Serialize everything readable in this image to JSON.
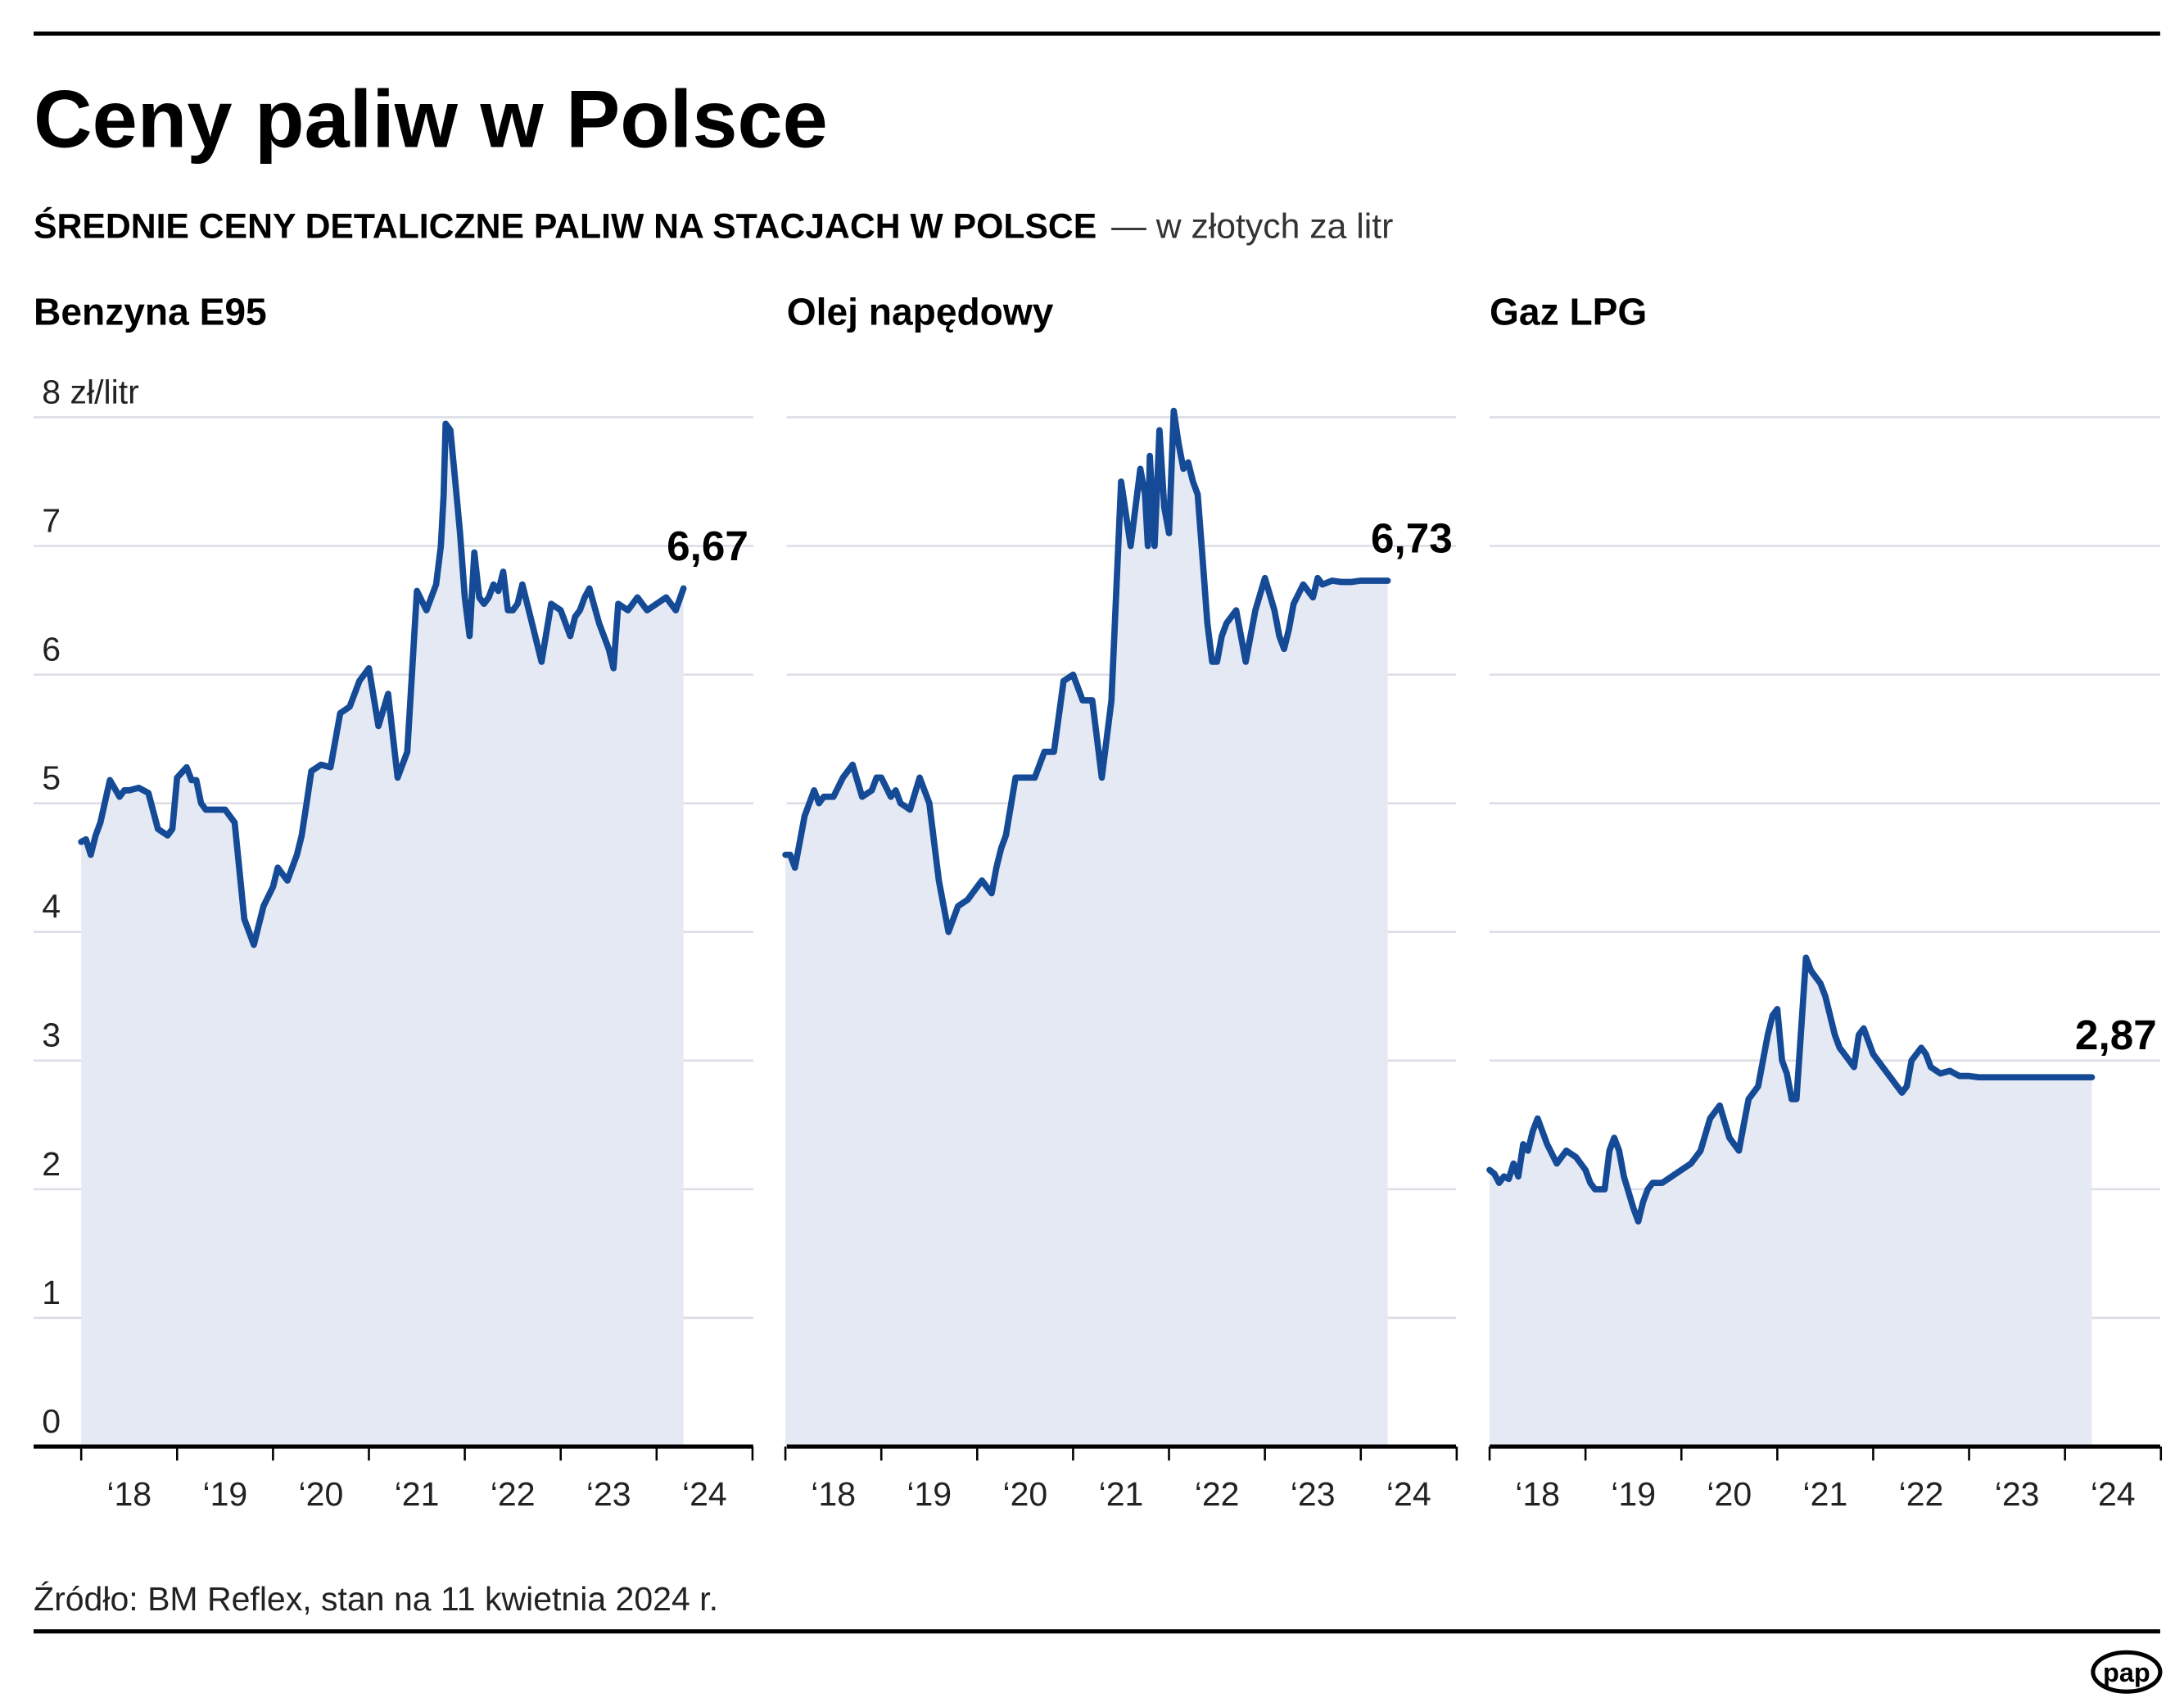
{
  "header": {
    "title": "Ceny paliw w Polsce",
    "subtitle_bold": "ŚREDNIE CENY DETALICZNE PALIW NA STACJACH W POLSCE",
    "subtitle_light": "— w złotych za litr"
  },
  "footer": {
    "source": "Źródło: BM Reflex, stan na 11 kwietnia 2024 r.",
    "logo": "pap"
  },
  "colors": {
    "line": "#154a96",
    "area": "#e5e9f3",
    "grid": "#dcdde6"
  },
  "chart_data": [
    {
      "type": "area",
      "title": "Benzyna E95",
      "ylabel": "zł/litr",
      "y_unit_label": "8 zł/litr",
      "ylim": [
        0,
        8
      ],
      "yticks": [
        "0",
        "1",
        "2",
        "3",
        "4",
        "5",
        "6",
        "7",
        "8 zł/litr"
      ],
      "xlim": [
        2018.0,
        2025.0
      ],
      "xticks": [
        "‘18",
        "‘19",
        "‘20",
        "‘21",
        "‘22",
        "‘23",
        "‘24"
      ],
      "grid": true,
      "end_label": "6,67",
      "series": [
        {
          "name": "Benzyna E95",
          "x": [
            2018.0,
            2018.05,
            2018.1,
            2018.15,
            2018.2,
            2018.3,
            2018.4,
            2018.45,
            2018.5,
            2018.6,
            2018.7,
            2018.8,
            2018.9,
            2018.95,
            2019.0,
            2019.1,
            2019.15,
            2019.2,
            2019.25,
            2019.3,
            2019.4,
            2019.5,
            2019.6,
            2019.7,
            2019.8,
            2019.9,
            2020.0,
            2020.05,
            2020.1,
            2020.15,
            2020.2,
            2020.25,
            2020.3,
            2020.35,
            2020.4,
            2020.5,
            2020.6,
            2020.7,
            2020.8,
            2020.9,
            2021.0,
            2021.1,
            2021.2,
            2021.3,
            2021.4,
            2021.5,
            2021.6,
            2021.7,
            2021.75,
            2021.78,
            2021.8,
            2021.85,
            2021.9,
            2021.95,
            2022.0,
            2022.05,
            2022.1,
            2022.15,
            2022.2,
            2022.25,
            2022.3,
            2022.35,
            2022.4,
            2022.45,
            2022.5,
            2022.55,
            2022.6,
            2022.7,
            2022.8,
            2022.9,
            2023.0,
            2023.1,
            2023.15,
            2023.2,
            2023.25,
            2023.3,
            2023.4,
            2023.5,
            2023.55,
            2023.6,
            2023.7,
            2023.8,
            2023.9,
            2024.0,
            2024.1,
            2024.2,
            2024.28
          ],
          "values": [
            4.7,
            4.72,
            4.6,
            4.75,
            4.85,
            5.18,
            5.05,
            5.1,
            5.1,
            5.12,
            5.08,
            4.8,
            4.75,
            4.8,
            5.2,
            5.28,
            5.18,
            5.18,
            5.0,
            4.95,
            4.95,
            4.95,
            4.85,
            4.1,
            3.9,
            4.2,
            4.35,
            4.5,
            4.45,
            4.4,
            4.5,
            4.6,
            4.75,
            5.0,
            5.25,
            5.3,
            5.28,
            5.7,
            5.75,
            5.95,
            6.05,
            5.6,
            5.85,
            5.2,
            5.4,
            6.65,
            6.5,
            6.7,
            7.0,
            7.4,
            7.95,
            7.9,
            7.5,
            7.1,
            6.6,
            6.3,
            6.95,
            6.6,
            6.55,
            6.6,
            6.7,
            6.65,
            6.8,
            6.5,
            6.5,
            6.55,
            6.7,
            6.4,
            6.1,
            6.55,
            6.5,
            6.3,
            6.45,
            6.5,
            6.6,
            6.67,
            6.4,
            6.2,
            6.05,
            6.55,
            6.5,
            6.6,
            6.5,
            6.55,
            6.6,
            6.5,
            6.67
          ]
        }
      ]
    },
    {
      "type": "area",
      "title": "Olej napędowy",
      "ylim": [
        0,
        8
      ],
      "xlim": [
        2018.0,
        2025.0
      ],
      "xticks": [
        "‘18",
        "‘19",
        "‘20",
        "‘21",
        "‘22",
        "‘23",
        "‘24"
      ],
      "grid": true,
      "end_label": "6,73",
      "series": [
        {
          "name": "Olej napędowy",
          "x": [
            2018.0,
            2018.05,
            2018.1,
            2018.15,
            2018.2,
            2018.3,
            2018.35,
            2018.4,
            2018.5,
            2018.6,
            2018.7,
            2018.8,
            2018.9,
            2018.95,
            2019.0,
            2019.1,
            2019.15,
            2019.2,
            2019.3,
            2019.4,
            2019.5,
            2019.6,
            2019.7,
            2019.8,
            2019.9,
            2020.0,
            2020.05,
            2020.1,
            2020.15,
            2020.2,
            2020.25,
            2020.3,
            2020.4,
            2020.5,
            2020.6,
            2020.7,
            2020.8,
            2020.9,
            2021.0,
            2021.1,
            2021.2,
            2021.3,
            2021.4,
            2021.5,
            2021.6,
            2021.7,
            2021.75,
            2021.78,
            2021.8,
            2021.85,
            2021.9,
            2021.95,
            2022.0,
            2022.05,
            2022.1,
            2022.15,
            2022.2,
            2022.25,
            2022.3,
            2022.35,
            2022.4,
            2022.45,
            2022.5,
            2022.55,
            2022.6,
            2022.7,
            2022.8,
            2022.9,
            2023.0,
            2023.1,
            2023.15,
            2023.2,
            2023.25,
            2023.3,
            2023.4,
            2023.5,
            2023.55,
            2023.6,
            2023.7,
            2023.8,
            2023.9,
            2024.0,
            2024.1,
            2024.2,
            2024.28
          ],
          "values": [
            4.6,
            4.6,
            4.5,
            4.7,
            4.9,
            5.1,
            5.0,
            5.05,
            5.05,
            5.2,
            5.3,
            5.05,
            5.1,
            5.2,
            5.2,
            5.05,
            5.1,
            5.0,
            4.95,
            5.2,
            5.0,
            4.4,
            4.0,
            4.2,
            4.25,
            4.35,
            4.4,
            4.35,
            4.3,
            4.5,
            4.65,
            4.75,
            5.2,
            5.2,
            5.2,
            5.4,
            5.4,
            5.95,
            6.0,
            5.8,
            5.8,
            5.2,
            5.8,
            7.5,
            7.0,
            7.6,
            7.4,
            7.0,
            7.7,
            7.0,
            7.9,
            7.3,
            7.1,
            8.05,
            7.8,
            7.6,
            7.65,
            7.5,
            7.4,
            6.9,
            6.4,
            6.1,
            6.1,
            6.3,
            6.4,
            6.5,
            6.1,
            6.5,
            6.75,
            6.5,
            6.3,
            6.2,
            6.35,
            6.55,
            6.7,
            6.6,
            6.75,
            6.7,
            6.73,
            6.72,
            6.72,
            6.73,
            6.73,
            6.73,
            6.73
          ]
        }
      ]
    },
    {
      "type": "area",
      "title": "Gaz LPG",
      "ylim": [
        0,
        8
      ],
      "xlim": [
        2018.0,
        2025.0
      ],
      "xticks": [
        "‘18",
        "‘19",
        "‘20",
        "‘21",
        "‘22",
        "‘23",
        "‘24"
      ],
      "grid": true,
      "end_label": "2,87",
      "series": [
        {
          "name": "Gaz LPG",
          "x": [
            2018.0,
            2018.05,
            2018.1,
            2018.15,
            2018.2,
            2018.25,
            2018.3,
            2018.35,
            2018.4,
            2018.45,
            2018.5,
            2018.55,
            2018.6,
            2018.7,
            2018.8,
            2018.9,
            2019.0,
            2019.05,
            2019.1,
            2019.15,
            2019.2,
            2019.25,
            2019.3,
            2019.35,
            2019.4,
            2019.5,
            2019.55,
            2019.6,
            2019.65,
            2019.7,
            2019.75,
            2019.8,
            2019.9,
            2020.0,
            2020.1,
            2020.2,
            2020.3,
            2020.4,
            2020.5,
            2020.6,
            2020.65,
            2020.7,
            2020.8,
            2020.9,
            2020.95,
            2021.0,
            2021.05,
            2021.1,
            2021.15,
            2021.2,
            2021.3,
            2021.35,
            2021.4,
            2021.45,
            2021.5,
            2021.55,
            2021.6,
            2021.65,
            2021.7,
            2021.75,
            2021.8,
            2021.85,
            2021.9,
            2021.95,
            2022.0,
            2022.1,
            2022.2,
            2022.3,
            2022.35,
            2022.4,
            2022.5,
            2022.55,
            2022.6,
            2022.7,
            2022.8,
            2022.85,
            2022.9,
            2023.0,
            2023.1,
            2023.2,
            2023.3,
            2023.4,
            2023.5,
            2023.55,
            2023.6,
            2023.7,
            2023.8,
            2023.9,
            2024.0,
            2024.1,
            2024.2,
            2024.28
          ],
          "values": [
            2.15,
            2.12,
            2.05,
            2.1,
            2.08,
            2.2,
            2.1,
            2.35,
            2.3,
            2.45,
            2.55,
            2.45,
            2.35,
            2.2,
            2.3,
            2.25,
            2.15,
            2.05,
            2.0,
            2.0,
            2.0,
            2.3,
            2.4,
            2.3,
            2.1,
            1.85,
            1.75,
            1.9,
            2.0,
            2.05,
            2.05,
            2.05,
            2.1,
            2.15,
            2.2,
            2.3,
            2.55,
            2.65,
            2.4,
            2.3,
            2.5,
            2.7,
            2.8,
            3.2,
            3.35,
            3.4,
            3.0,
            2.9,
            2.7,
            2.7,
            3.8,
            3.7,
            3.65,
            3.6,
            3.5,
            3.35,
            3.2,
            3.1,
            3.05,
            3.0,
            2.95,
            3.2,
            3.25,
            3.15,
            3.05,
            2.95,
            2.85,
            2.75,
            2.8,
            3.0,
            3.1,
            3.05,
            2.95,
            2.9,
            2.92,
            2.9,
            2.88,
            2.88,
            2.87,
            2.87,
            2.87,
            2.87,
            2.87,
            2.87,
            2.87,
            2.87,
            2.87,
            2.87,
            2.87,
            2.87,
            2.87,
            2.87
          ]
        }
      ]
    }
  ]
}
